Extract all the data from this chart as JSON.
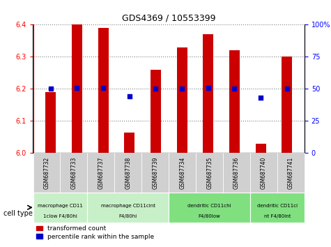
{
  "title": "GDS4369 / 10553399",
  "samples": [
    "GSM687732",
    "GSM687733",
    "GSM687737",
    "GSM687738",
    "GSM687739",
    "GSM687734",
    "GSM687735",
    "GSM687736",
    "GSM687740",
    "GSM687741"
  ],
  "transformed_count": [
    6.19,
    6.4,
    6.39,
    6.065,
    6.26,
    6.33,
    6.37,
    6.32,
    6.03,
    6.3
  ],
  "percentile_rank": [
    50,
    51,
    51,
    44,
    50,
    50,
    51,
    50,
    43,
    50
  ],
  "ylim_left": [
    6.0,
    6.4
  ],
  "ylim_right": [
    0,
    100
  ],
  "yticks_left": [
    6.0,
    6.1,
    6.2,
    6.3,
    6.4
  ],
  "yticks_right": [
    0,
    25,
    50,
    75,
    100
  ],
  "bar_color": "#cc0000",
  "dot_color": "#0000cc",
  "bar_width": 0.4,
  "cell_type_groups": [
    {
      "label": "macrophage CD11\n1clow F4/80hi",
      "start": 0,
      "end": 1,
      "color": "#c8f0c8"
    },
    {
      "label": "macrophage CD11cint\nF4/80hi",
      "start": 2,
      "end": 4,
      "color": "#c8f0c8"
    },
    {
      "label": "dendritic CD11chi\nF4/80low",
      "start": 5,
      "end": 7,
      "color": "#80e080"
    },
    {
      "label": "dendritic CD11ci\nnt F4/80int",
      "start": 8,
      "end": 9,
      "color": "#80e080"
    }
  ],
  "legend_red_label": "transformed count",
  "legend_blue_label": "percentile rank within the sample",
  "cell_type_label": "cell type"
}
